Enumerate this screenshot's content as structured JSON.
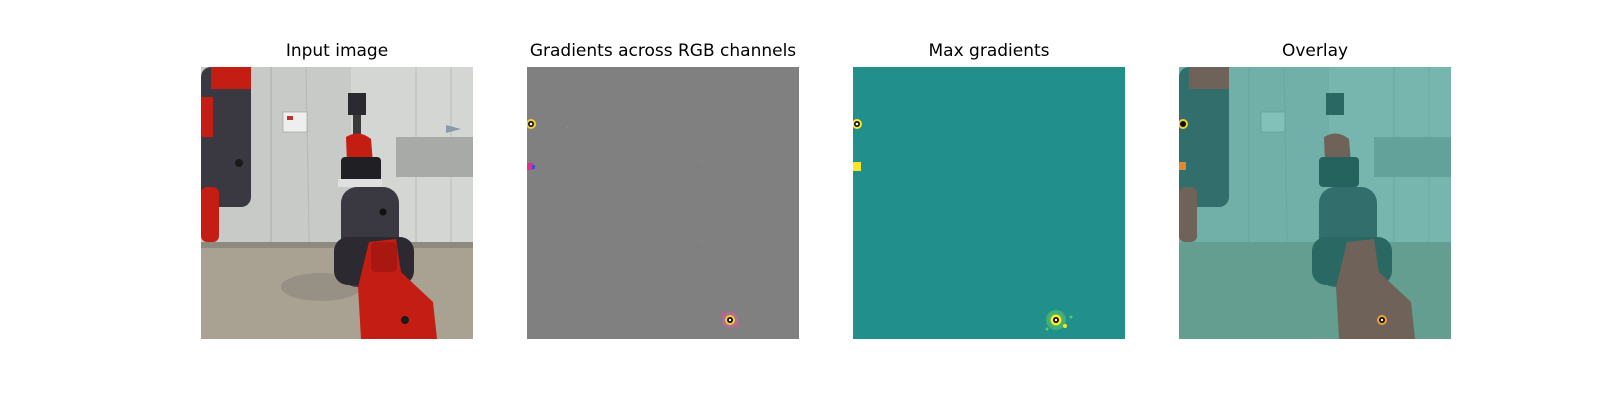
{
  "figure": {
    "panels": [
      {
        "title": "Input image"
      },
      {
        "title": "Gradients across RGB channels"
      },
      {
        "title": "Max gradients"
      },
      {
        "title": "Overlay"
      }
    ],
    "colors": {
      "wall": "#c6c8c6",
      "floor": "#a8a090",
      "robot_red": "#c41e14",
      "robot_dark": "#3a3840",
      "gradient_gray": "#808080",
      "saliency_teal": "#21908c",
      "saliency_yellow": "#fde725",
      "overlay_tint": "#5fb8b0"
    }
  }
}
